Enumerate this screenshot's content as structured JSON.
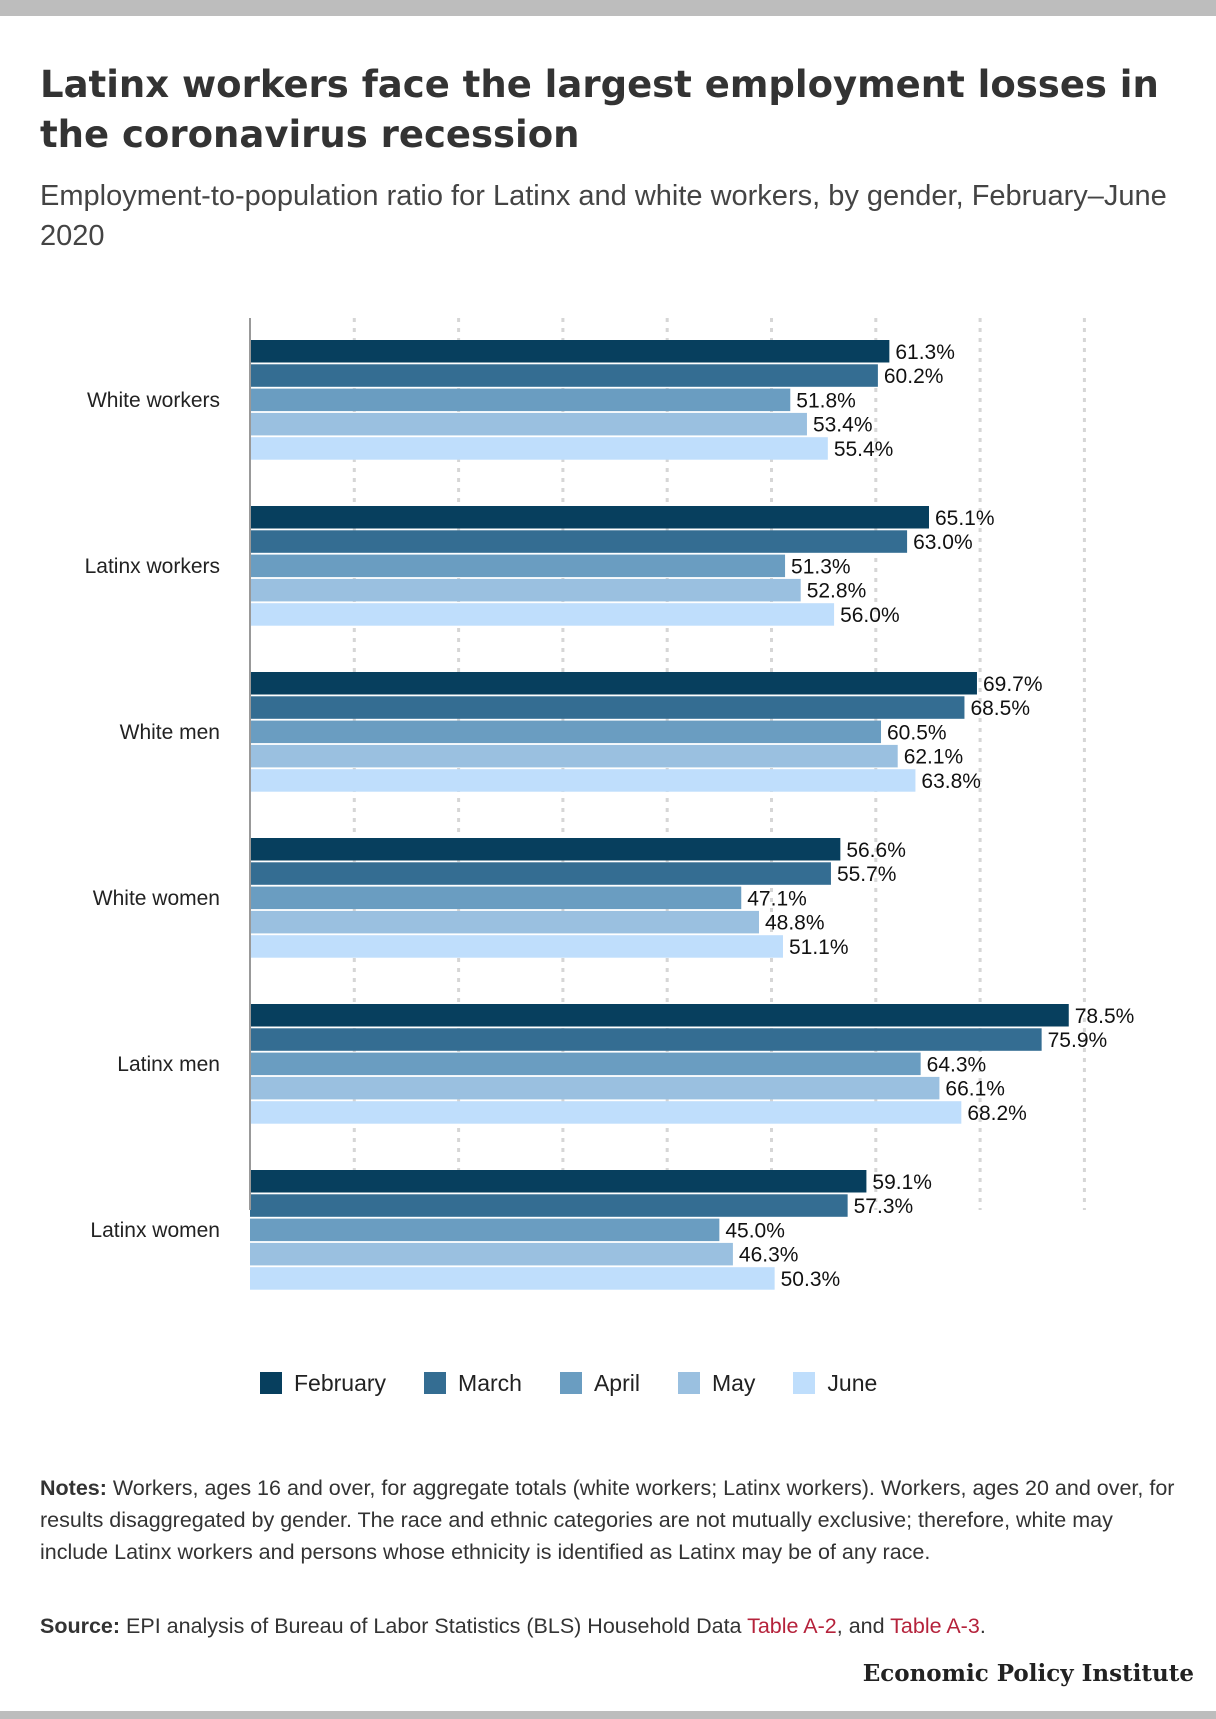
{
  "title": "Latinx workers face the largest employment losses in the coronavirus recession",
  "subtitle": "Employment-to-population ratio for Latinx and white workers, by gender, February–June 2020",
  "chart_data": {
    "type": "bar",
    "orientation": "horizontal",
    "categories": [
      "White workers",
      "Latinx workers",
      "White men",
      "White women",
      "Latinx men",
      "Latinx women"
    ],
    "series": [
      {
        "name": "February",
        "color": "#073f5e",
        "values": [
          61.3,
          65.1,
          69.7,
          56.6,
          78.5,
          59.1
        ],
        "labels": [
          "61.3%",
          "65.1%",
          "69.7%",
          "56.6%",
          "78.5%",
          "59.1%"
        ]
      },
      {
        "name": "March",
        "color": "#346d92",
        "values": [
          60.2,
          63.0,
          68.5,
          55.7,
          75.9,
          57.3
        ],
        "labels": [
          "60.2%",
          "63.0%",
          "68.5%",
          "55.7%",
          "75.9%",
          "57.3%"
        ]
      },
      {
        "name": "April",
        "color": "#6a9dc1",
        "values": [
          51.8,
          51.3,
          60.5,
          47.1,
          64.3,
          45.0
        ],
        "labels": [
          "51.8%",
          "51.3%",
          "60.5%",
          "47.1%",
          "64.3%",
          "45.0%"
        ]
      },
      {
        "name": "May",
        "color": "#9ac0e0",
        "values": [
          53.4,
          52.8,
          62.1,
          48.8,
          66.1,
          46.3
        ],
        "labels": [
          "53.4%",
          "52.8%",
          "62.1%",
          "48.8%",
          "66.1%",
          "46.3%"
        ]
      },
      {
        "name": "June",
        "color": "#bfdefc",
        "values": [
          55.4,
          56.0,
          63.8,
          51.1,
          68.2,
          50.3
        ],
        "labels": [
          "55.4%",
          "56.0%",
          "63.8%",
          "51.1%",
          "68.2%",
          "50.3%"
        ]
      }
    ],
    "xlim": [
      0,
      80
    ],
    "grid": true,
    "legend_position": "bottom"
  },
  "notes": {
    "lead": "Notes:",
    "text": " Workers, ages 16 and over, for aggregate totals (white workers; Latinx workers). Workers, ages 20 and over, for results disaggregated by gender. The race and ethnic categories are not mutually exclusive; therefore, white may include Latinx workers and persons whose ethnicity is identified as Latinx may be of any race."
  },
  "source": {
    "lead": "Source:",
    "text": " EPI analysis of Bureau of Labor Statistics (BLS) Household Data ",
    "link1": "Table A-2",
    "middle": ", and ",
    "link2": "Table A-3",
    "end": "."
  },
  "brand": "Economic Policy Institute"
}
